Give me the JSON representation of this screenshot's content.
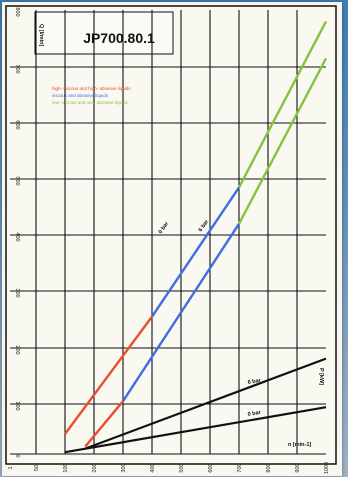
{
  "chart_data": [
    {
      "type": "line",
      "title": "JP700.80.1",
      "ylabel": "Q [l/min]",
      "legend": [
        {
          "label": "high- viscous and high- abrasive liquids",
          "color": "#ea4e2d"
        },
        {
          "label": "viscous and abrasive liquids",
          "color": "#3d6fe0"
        },
        {
          "label": "low- viscous and non- abrasive liquids",
          "color": "#86c23e"
        }
      ],
      "legend_position": "top-left",
      "grid": true,
      "xlim": [
        0,
        1000
      ],
      "ylim": [
        0,
        800
      ],
      "x_ticks": [
        "1",
        "50",
        "100",
        "200",
        "300",
        "400",
        "500",
        "600",
        "700",
        "800",
        "900",
        "1000"
      ],
      "y_ticks": [
        "0",
        "100",
        "200",
        "300",
        "400",
        "500",
        "600",
        "700",
        "800"
      ],
      "series": [
        {
          "name": "0 bar",
          "segments": [
            {
              "color": "#ea4e2d",
              "x": [
                100,
                400
              ],
              "y": [
                40,
                255
              ]
            },
            {
              "color": "#3d6fe0",
              "x": [
                400,
                700
              ],
              "y": [
                255,
                485
              ]
            },
            {
              "color": "#86c23e",
              "x": [
                700,
                1000
              ],
              "y": [
                485,
                780
              ]
            }
          ]
        },
        {
          "name": "6 bar",
          "segments": [
            {
              "color": "#ea4e2d",
              "x": [
                170,
                300
              ],
              "y": [
                15,
                105
              ]
            },
            {
              "color": "#3d6fe0",
              "x": [
                300,
                700
              ],
              "y": [
                105,
                420
              ]
            },
            {
              "color": "#86c23e",
              "x": [
                700,
                1000
              ],
              "y": [
                420,
                715
              ]
            }
          ]
        }
      ]
    },
    {
      "type": "line",
      "ylabel": "P [kW]",
      "xlabel": "n [min-1]",
      "grid": false,
      "series": [
        {
          "name": "6 bar",
          "color": "#111111",
          "x": [
            170,
            1000
          ],
          "y": [
            0.3,
            5.3
          ]
        },
        {
          "name": "0 bar",
          "color": "#111111",
          "x": [
            100,
            1000
          ],
          "y": [
            0.1,
            2.6
          ]
        }
      ]
    }
  ]
}
